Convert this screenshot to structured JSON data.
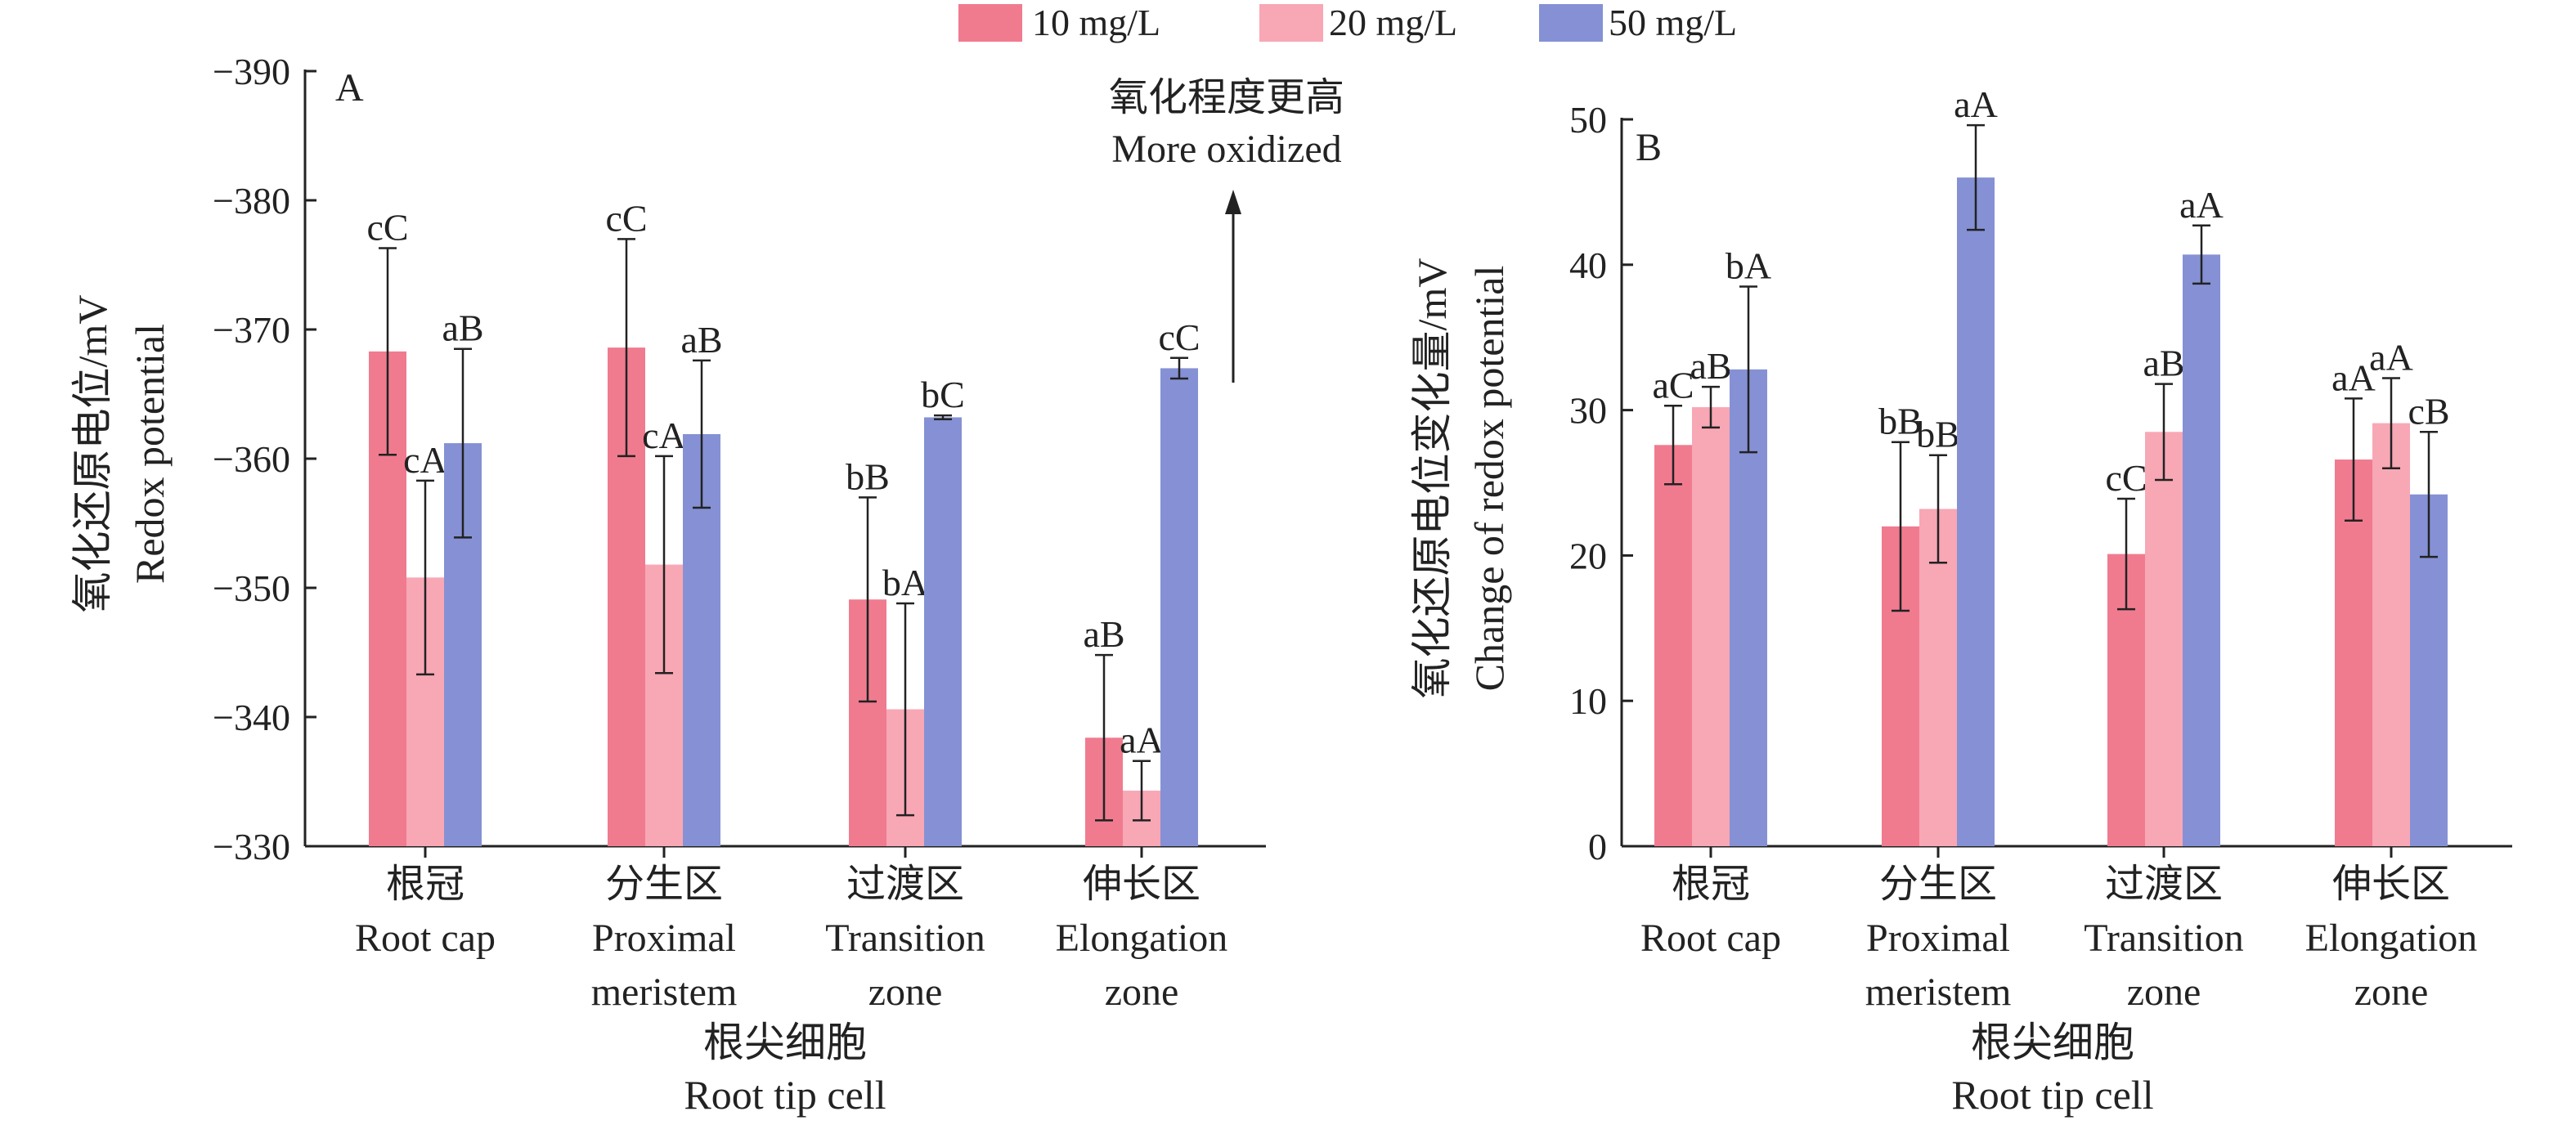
{
  "legend": {
    "items": [
      {
        "label": "10 mg/L",
        "color": "#f07b8f"
      },
      {
        "label": "20 mg/L",
        "color": "#f8a7b5"
      },
      {
        "label": "50 mg/L",
        "color": "#8591d4"
      }
    ]
  },
  "chart_data": [
    {
      "type": "bar",
      "panel_label": "A",
      "categories": [
        "根冠\nRoot cap",
        "分生区\nProximal\nmeristem",
        "过渡区\nTransition\nzone",
        "伸长区\nElongation\nzone"
      ],
      "series": [
        {
          "name": "10 mg/L",
          "values": [
            -368.3,
            -368.6,
            -349.1,
            -338.4
          ],
          "errors": [
            8.0,
            8.4,
            7.9,
            6.4
          ],
          "labels": [
            "cC",
            "cC",
            "bB",
            "aB"
          ]
        },
        {
          "name": "20 mg/L",
          "values": [
            -350.8,
            -351.8,
            -340.6,
            -334.3
          ],
          "errors": [
            7.5,
            8.4,
            8.2,
            2.3
          ],
          "labels": [
            "cA",
            "cA",
            "bA",
            "aA"
          ]
        },
        {
          "name": "50 mg/L",
          "values": [
            -361.2,
            -361.9,
            -363.2,
            -367.0
          ],
          "errors": [
            7.3,
            5.7,
            0.15,
            0.8
          ],
          "labels": [
            "aB",
            "aB",
            "bC",
            "cC"
          ]
        }
      ],
      "ylabel": [
        "氧化还原电位/mV",
        "Redox potential"
      ],
      "xlabel": [
        "根尖细胞",
        "Root tip cell"
      ],
      "ylim": [
        -330,
        -390
      ],
      "yticks": [
        -390,
        -380,
        -370,
        -360,
        -350,
        -340,
        -330
      ],
      "ytick_labels": [
        "−390",
        "−380",
        "−370",
        "−360",
        "−350",
        "−340",
        "−330"
      ],
      "annotation": [
        "氧化程度更高",
        "More oxidized"
      ]
    },
    {
      "type": "bar",
      "panel_label": "B",
      "categories": [
        "根冠\nRoot cap",
        "分生区\nProximal\nmeristem",
        "过渡区\nTransition\nzone",
        "伸长区\nElongation\nzone"
      ],
      "series": [
        {
          "name": "10 mg/L",
          "values": [
            27.6,
            22.0,
            20.1,
            26.6
          ],
          "errors": [
            2.7,
            5.8,
            3.8,
            4.2
          ],
          "labels": [
            "aC",
            "bB",
            "cC",
            "aA"
          ]
        },
        {
          "name": "20 mg/L",
          "values": [
            30.2,
            23.2,
            28.5,
            29.1
          ],
          "errors": [
            1.4,
            3.7,
            3.3,
            3.1
          ],
          "labels": [
            "aB",
            "bB",
            "aB",
            "aA"
          ]
        },
        {
          "name": "50 mg/L",
          "values": [
            32.8,
            46.0,
            40.7,
            24.2
          ],
          "errors": [
            5.7,
            3.6,
            2.0,
            4.3
          ],
          "labels": [
            "bA",
            "aA",
            "aA",
            "cB"
          ]
        }
      ],
      "ylabel": [
        "氧化还原电位变化量/mV",
        "Change of redox potential"
      ],
      "xlabel": [
        "根尖细胞",
        "Root tip cell"
      ],
      "ylim": [
        0,
        50
      ],
      "yticks": [
        0,
        10,
        20,
        30,
        40,
        50
      ],
      "ytick_labels": [
        "0",
        "10",
        "20",
        "30",
        "40",
        "50"
      ]
    }
  ]
}
